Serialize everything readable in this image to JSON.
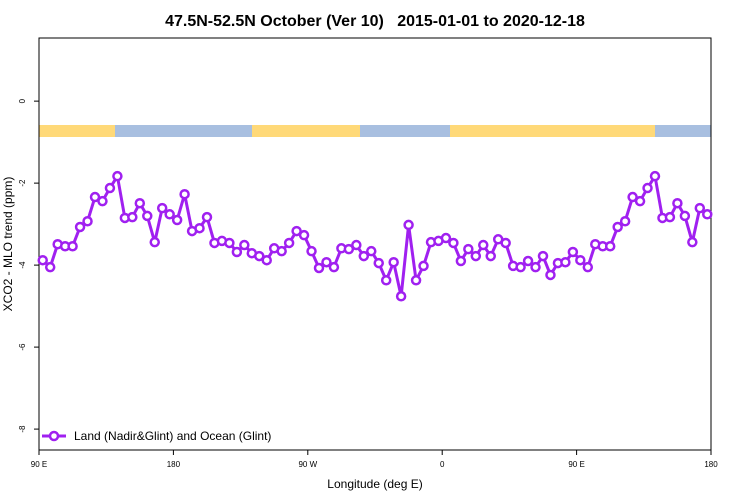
{
  "chart_data": {
    "type": "line",
    "title": "47.5N-52.5N October (Ver 10)   2015-01-01 to 2020-12-18",
    "x_label": "Longitude (deg E)",
    "y_label": "XCO2 - MLO trend (ppm)",
    "xlim": [
      90,
      540
    ],
    "ylim": [
      -8.51,
      1.54
    ],
    "xticks": [
      {
        "value": 90,
        "label": "90 E"
      },
      180,
      {
        "value": 270,
        "label": "90 W"
      },
      {
        "value": 360,
        "label": "0"
      },
      {
        "value": 450,
        "label": "90 E"
      },
      {
        "value": 540,
        "label": "180"
      }
    ],
    "yticks": [
      0,
      -2,
      -4,
      -6,
      -8
    ],
    "legend": "bottom-left",
    "x": [
      92.5,
      97.5,
      102.5,
      107.5,
      112.5,
      117.5,
      122.5,
      127.5,
      132.5,
      137.5,
      142.5,
      147.5,
      152.5,
      157.5,
      162.5,
      167.5,
      172.5,
      177.5,
      182.5,
      187.5,
      192.5,
      197.5,
      202.5,
      207.5,
      212.5,
      217.5,
      222.5,
      227.5,
      232.5,
      237.5,
      242.5,
      247.5,
      252.5,
      257.5,
      262.5,
      267.5,
      272.5,
      277.5,
      282.5,
      287.5,
      292.5,
      297.5,
      302.5,
      307.5,
      312.5,
      317.5,
      322.5,
      327.5,
      332.5,
      337.5,
      342.5,
      347.5,
      352.5,
      357.5,
      362.5,
      367.5,
      372.5,
      377.5,
      382.5,
      387.5,
      392.5,
      397.5,
      402.5,
      407.5,
      412.5,
      417.5,
      422.5,
      427.5,
      432.5,
      437.5,
      442.5,
      447.5,
      452.5,
      457.5,
      462.5,
      467.5,
      472.5,
      477.5,
      482.5,
      487.5,
      492.5,
      497.5,
      502.5,
      507.5,
      512.5,
      517.5,
      522.5,
      527.5,
      532.5,
      537.5
    ],
    "series": [
      {
        "name": "Land (Nadir&Glint) and Ocean (Glint)",
        "color": "#a020f0",
        "values": [
          -3.88,
          -4.05,
          -3.49,
          -3.54,
          -3.54,
          -3.07,
          -2.93,
          -2.34,
          -2.44,
          -2.12,
          -1.83,
          -2.85,
          -2.83,
          -2.49,
          -2.8,
          -3.44,
          -2.61,
          -2.76,
          -2.9,
          -2.27,
          -3.17,
          -3.1,
          -2.83,
          -3.46,
          -3.41,
          -3.46,
          -3.68,
          -3.51,
          -3.71,
          -3.78,
          -3.88,
          -3.59,
          -3.66,
          -3.46,
          -3.17,
          -3.27,
          -3.66,
          -4.07,
          -3.93,
          -4.05,
          -3.59,
          -3.61,
          -3.51,
          -3.78,
          -3.66,
          -3.95,
          -4.37,
          -3.93,
          -4.76,
          -3.02,
          -4.37,
          -4.02,
          -3.44,
          -3.41,
          -3.34,
          -3.46,
          -3.9,
          -3.61,
          -3.78,
          -3.51,
          -3.78,
          -3.37,
          -3.46,
          -4.02,
          -4.05,
          -3.9,
          -4.05,
          -3.78,
          -4.24,
          -3.95,
          -3.93,
          -3.68,
          -3.88,
          -4.05,
          -3.49,
          -3.54,
          -3.54,
          -3.07,
          -2.93,
          -2.34,
          -2.44,
          -2.12,
          -1.83,
          -2.85,
          -2.83,
          -2.49,
          -2.8,
          -3.44,
          -2.61,
          -2.76
        ]
      }
    ]
  }
}
